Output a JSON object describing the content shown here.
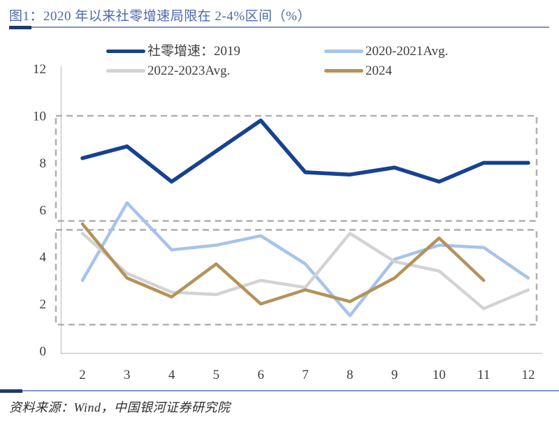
{
  "header": {
    "title": "图1：2020 年以来社零增速局限在 2-4%区间（%）"
  },
  "footer": {
    "source": "资料来源：Wind，中国银河证券研究院"
  },
  "chart_data": {
    "type": "line",
    "title": "图1：2020 年以来社零增速局限在 2-4%区间（%）",
    "xlabel": "",
    "ylabel": "",
    "x": [
      2,
      3,
      4,
      5,
      6,
      7,
      8,
      9,
      10,
      11,
      12
    ],
    "xlim": [
      2,
      12
    ],
    "ylim": [
      0,
      12
    ],
    "yticks": [
      0,
      2,
      4,
      6,
      8,
      10,
      12
    ],
    "grid": false,
    "legend_position": "top",
    "series": [
      {
        "name": "社零增速：2019",
        "color": "#16428f",
        "width": 5.5,
        "values": [
          8.2,
          8.7,
          7.2,
          8.5,
          9.8,
          7.6,
          7.5,
          7.8,
          7.2,
          8.0,
          8.0
        ]
      },
      {
        "name": "2020-2021Avg.",
        "color": "#a6c3ec",
        "width": 4.5,
        "values": [
          3.0,
          6.3,
          4.3,
          4.5,
          4.9,
          3.7,
          1.5,
          3.9,
          4.5,
          4.4,
          3.1
        ]
      },
      {
        "name": "2022-2023Avg.",
        "color": "#d3d3d3",
        "width": 4.5,
        "values": [
          5.0,
          3.3,
          2.5,
          2.4,
          3.0,
          2.7,
          5.0,
          3.8,
          3.4,
          1.8,
          2.6
        ]
      },
      {
        "name": "2024",
        "color": "#b49259",
        "width": 4.5,
        "values": [
          5.4,
          3.1,
          2.3,
          3.7,
          2.0,
          2.6,
          2.1,
          3.1,
          4.8,
          3.0,
          null
        ]
      }
    ],
    "annotations": {
      "style": "dashed-rectangles",
      "boxes": [
        {
          "name": "upper-range-box",
          "y_top": 10.0,
          "y_bottom": 5.53
        },
        {
          "name": "lower-range-box",
          "y_top": 5.15,
          "y_bottom": 1.12
        }
      ]
    },
    "axis_color": "#c9c9c9",
    "tick_color": "#3d3d3d",
    "box_color": "#b1b1b1"
  }
}
